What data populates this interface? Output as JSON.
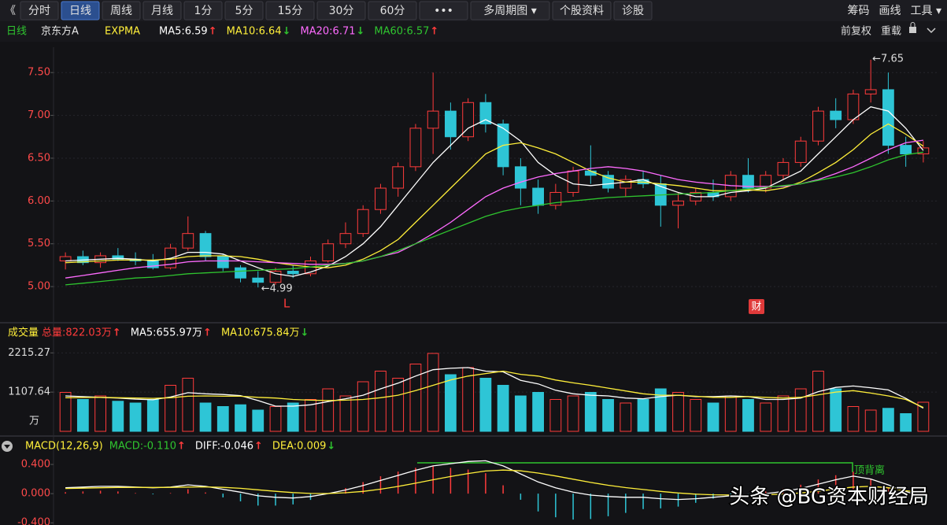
{
  "toolbar": {
    "left": [
      "《",
      "分时",
      "日线",
      "周线",
      "月线",
      "1分",
      "5分",
      "15分",
      "30分",
      "60分",
      "•••",
      "多周期图 ▾",
      "个股资料",
      "诊股"
    ],
    "active": "日线",
    "right": [
      "筹码",
      "画线",
      "工具 ▾"
    ]
  },
  "header": {
    "period": "日线",
    "name": "京东方A",
    "indicator": "EXPMA",
    "right": [
      "前复权",
      "重载"
    ]
  },
  "watermark": "头条 @BG资本财经局",
  "chart_data": [
    {
      "type": "candlestick",
      "open": [
        5.3,
        5.35,
        5.28,
        5.36,
        5.32,
        5.3,
        5.22,
        5.45,
        5.62,
        5.35,
        5.22,
        5.1,
        5.05,
        5.18,
        5.15,
        5.3,
        5.5,
        5.62,
        5.9,
        6.15,
        6.4,
        6.85,
        7.05,
        6.75,
        7.15,
        6.9,
        6.4,
        6.15,
        5.95,
        6.1,
        6.35,
        6.3,
        6.15,
        6.25,
        6.2,
        5.95,
        6.0,
        6.1,
        6.05,
        6.3,
        6.15,
        6.3,
        6.45,
        6.7,
        7.05,
        6.95,
        7.25,
        7.3,
        6.65,
        6.55
      ],
      "high": [
        5.4,
        5.42,
        5.4,
        5.45,
        5.4,
        5.38,
        5.5,
        5.82,
        5.65,
        5.38,
        5.25,
        5.18,
        5.22,
        5.25,
        5.35,
        5.55,
        5.75,
        5.95,
        6.2,
        6.45,
        6.9,
        7.5,
        7.15,
        7.2,
        7.25,
        6.95,
        6.5,
        6.25,
        6.2,
        6.4,
        6.65,
        6.35,
        6.3,
        6.35,
        6.3,
        6.1,
        6.15,
        6.25,
        6.35,
        6.5,
        6.35,
        6.5,
        6.75,
        7.1,
        7.2,
        7.3,
        7.65,
        7.5,
        6.75,
        6.7
      ],
      "low": [
        5.2,
        5.25,
        5.22,
        5.3,
        5.25,
        5.2,
        5.2,
        5.42,
        5.3,
        5.18,
        5.05,
        4.99,
        5.02,
        5.1,
        5.12,
        5.28,
        5.45,
        5.58,
        5.85,
        6.05,
        6.35,
        6.55,
        6.6,
        6.7,
        6.8,
        6.3,
        5.95,
        5.85,
        5.9,
        6.05,
        6.2,
        6.1,
        6.05,
        6.15,
        5.7,
        5.68,
        5.95,
        6.0,
        6.0,
        6.1,
        6.1,
        6.25,
        6.4,
        6.65,
        6.85,
        6.9,
        7.15,
        6.55,
        6.4,
        6.45
      ],
      "close": [
        5.35,
        5.28,
        5.36,
        5.32,
        5.3,
        5.22,
        5.45,
        5.62,
        5.35,
        5.22,
        5.1,
        5.05,
        5.18,
        5.15,
        5.3,
        5.5,
        5.62,
        5.9,
        6.15,
        6.4,
        6.85,
        7.05,
        6.75,
        7.15,
        6.9,
        6.4,
        6.15,
        5.95,
        6.1,
        6.35,
        6.3,
        6.15,
        6.25,
        6.2,
        5.95,
        6.0,
        6.1,
        6.05,
        6.3,
        6.15,
        6.3,
        6.45,
        6.7,
        7.05,
        6.95,
        7.25,
        7.3,
        6.65,
        6.55,
        6.62
      ],
      "up_color": "#ff3b3b",
      "down_color": "#2ec5d6",
      "ylim": [
        4.67,
        7.75
      ],
      "yticks": [
        {
          "value": 5.0,
          "label": "5.00"
        },
        {
          "value": 5.5,
          "label": "5.50"
        },
        {
          "value": 6.0,
          "label": "6.00"
        },
        {
          "value": 6.5,
          "label": "6.50"
        },
        {
          "value": 7.0,
          "label": "7.00"
        },
        {
          "value": 7.5,
          "label": "7.50"
        }
      ],
      "grid": true,
      "series": [
        {
          "name": "MA5:6.59",
          "arrow": "↑",
          "color": "#ffffff",
          "values": [
            5.3,
            5.31,
            5.32,
            5.33,
            5.32,
            5.3,
            5.33,
            5.4,
            5.4,
            5.38,
            5.3,
            5.22,
            5.15,
            5.12,
            5.17,
            5.24,
            5.35,
            5.5,
            5.7,
            5.95,
            6.2,
            6.45,
            6.65,
            6.85,
            6.95,
            6.85,
            6.7,
            6.45,
            6.3,
            6.2,
            6.18,
            6.2,
            6.22,
            6.25,
            6.17,
            6.1,
            6.05,
            6.05,
            6.1,
            6.12,
            6.15,
            6.25,
            6.35,
            6.55,
            6.75,
            6.95,
            7.1,
            7.05,
            6.85,
            6.59
          ]
        },
        {
          "name": "MA10:6.64",
          "arrow": "↓",
          "color": "#ffef3a",
          "values": [
            5.28,
            5.29,
            5.3,
            5.31,
            5.31,
            5.31,
            5.32,
            5.35,
            5.36,
            5.36,
            5.35,
            5.32,
            5.28,
            5.25,
            5.23,
            5.22,
            5.25,
            5.32,
            5.42,
            5.55,
            5.75,
            5.95,
            6.15,
            6.35,
            6.55,
            6.65,
            6.68,
            6.62,
            6.55,
            6.45,
            6.35,
            6.27,
            6.22,
            6.22,
            6.2,
            6.18,
            6.15,
            6.12,
            6.12,
            6.13,
            6.12,
            6.15,
            6.22,
            6.33,
            6.45,
            6.6,
            6.78,
            6.9,
            6.78,
            6.64
          ]
        },
        {
          "name": "MA20:6.71",
          "arrow": "↓",
          "color": "#ff6bff",
          "values": [
            5.1,
            5.13,
            5.16,
            5.19,
            5.22,
            5.24,
            5.26,
            5.29,
            5.3,
            5.3,
            5.3,
            5.29,
            5.28,
            5.27,
            5.26,
            5.26,
            5.27,
            5.3,
            5.35,
            5.4,
            5.5,
            5.62,
            5.75,
            5.9,
            6.05,
            6.15,
            6.22,
            6.28,
            6.32,
            6.35,
            6.38,
            6.4,
            6.38,
            6.35,
            6.3,
            6.25,
            6.22,
            6.2,
            6.18,
            6.17,
            6.17,
            6.17,
            6.2,
            6.25,
            6.32,
            6.4,
            6.5,
            6.6,
            6.68,
            6.71
          ]
        },
        {
          "name": "MA60:6.57",
          "arrow": "↑",
          "color": "#2fc42f",
          "values": [
            5.02,
            5.04,
            5.06,
            5.08,
            5.1,
            5.11,
            5.13,
            5.15,
            5.16,
            5.17,
            5.18,
            5.19,
            5.2,
            5.21,
            5.23,
            5.25,
            5.27,
            5.3,
            5.35,
            5.42,
            5.5,
            5.58,
            5.66,
            5.74,
            5.82,
            5.88,
            5.92,
            5.95,
            5.98,
            6.0,
            6.02,
            6.04,
            6.05,
            6.06,
            6.07,
            6.08,
            6.09,
            6.1,
            6.12,
            6.14,
            6.16,
            6.18,
            6.2,
            6.24,
            6.28,
            6.33,
            6.4,
            6.48,
            6.54,
            6.57
          ]
        }
      ],
      "annotations": [
        "←7.65",
        "←4.99"
      ],
      "markers": [
        "L",
        "财"
      ]
    },
    {
      "type": "bar",
      "title": "成交量",
      "unit": "万",
      "values": [
        1100,
        900,
        1000,
        850,
        800,
        900,
        1300,
        1500,
        800,
        700,
        750,
        600,
        700,
        800,
        900,
        1200,
        1000,
        1400,
        1700,
        1500,
        1900,
        2200,
        1600,
        1800,
        1500,
        1300,
        1000,
        1100,
        900,
        1000,
        1100,
        900,
        800,
        900,
        1200,
        1100,
        900,
        800,
        1000,
        900,
        800,
        1000,
        1200,
        1700,
        1200,
        700,
        600,
        650,
        500,
        822.03
      ],
      "ylim": [
        0,
        2400
      ],
      "yticks": [
        1107.64,
        2215.27
      ],
      "grid": true,
      "total": {
        "label": "总量:822.03万",
        "arrow": "↑",
        "color": "#ff3b3b"
      },
      "series": [
        {
          "name": "MA5:655.97万",
          "arrow": "↑",
          "color": "#ffffff",
          "values": [
            1000,
            980,
            960,
            940,
            910,
            890,
            970,
            1090,
            1060,
            1040,
            1010,
            870,
            710,
            710,
            750,
            840,
            920,
            1020,
            1200,
            1360,
            1560,
            1740,
            1780,
            1800,
            1700,
            1680,
            1440,
            1340,
            1160,
            1060,
            1020,
            1000,
            940,
            920,
            980,
            1020,
            980,
            980,
            1000,
            980,
            900,
            900,
            940,
            1120,
            1240,
            1280,
            1230,
            1170,
            930,
            655.97
          ]
        },
        {
          "name": "MA10:675.84万",
          "arrow": "↓",
          "color": "#ffef3a",
          "values": [
            950,
            955,
            960,
            950,
            940,
            930,
            950,
            990,
            1000,
            990,
            990,
            960,
            940,
            900,
            880,
            870,
            880,
            900,
            950,
            1020,
            1150,
            1300,
            1450,
            1560,
            1630,
            1700,
            1610,
            1560,
            1450,
            1370,
            1300,
            1220,
            1140,
            1060,
            1020,
            1020,
            990,
            960,
            960,
            980,
            960,
            940,
            960,
            1030,
            1110,
            1150,
            1080,
            1000,
            900,
            675.84
          ]
        }
      ]
    },
    {
      "type": "macd",
      "title": "MACD(12,26,9)",
      "values": [
        0.02,
        0.03,
        0.04,
        0.03,
        0.008,
        -0.01,
        0.008,
        0.06,
        0.016,
        -0.052,
        -0.106,
        -0.164,
        -0.164,
        -0.148,
        -0.086,
        -0.004,
        0.076,
        0.158,
        0.238,
        0.302,
        0.354,
        0.38,
        0.352,
        0.33,
        0.28,
        0.114,
        -0.084,
        -0.244,
        -0.324,
        -0.356,
        -0.348,
        -0.31,
        -0.264,
        -0.212,
        -0.202,
        -0.178,
        -0.126,
        -0.068,
        -0.022,
        -0.002,
        0.03,
        0.072,
        0.122,
        0.194,
        0.252,
        0.3,
        0.2,
        0.08,
        -0.02,
        -0.11
      ],
      "value_name": {
        "label": "MACD:-0.110",
        "arrow": "↑",
        "color": "#2fc42f"
      },
      "ylim": [
        -0.43,
        0.53
      ],
      "yticks": [
        {
          "value": -0.4,
          "label": "-0.400"
        },
        {
          "value": 0,
          "label": "0.000"
        },
        {
          "value": 0.4,
          "label": "0.400"
        }
      ],
      "series": [
        {
          "name": "DIFF:-0.046",
          "arrow": "↑",
          "color": "#ffffff",
          "values": [
            0.08,
            0.09,
            0.1,
            0.1,
            0.09,
            0.08,
            0.09,
            0.12,
            0.1,
            0.06,
            0.02,
            -0.03,
            -0.05,
            -0.06,
            -0.04,
            0.0,
            0.05,
            0.11,
            0.18,
            0.25,
            0.32,
            0.38,
            0.41,
            0.44,
            0.45,
            0.38,
            0.27,
            0.16,
            0.08,
            0.02,
            -0.02,
            -0.04,
            -0.05,
            -0.05,
            -0.07,
            -0.08,
            -0.07,
            -0.05,
            -0.03,
            -0.02,
            0.0,
            0.03,
            0.07,
            0.13,
            0.19,
            0.24,
            0.2,
            0.12,
            0.03,
            -0.046
          ]
        },
        {
          "name": "DEA:0.009",
          "arrow": "↓",
          "color": "#ffef3a",
          "values": [
            0.07,
            0.075,
            0.08,
            0.085,
            0.086,
            0.085,
            0.086,
            0.09,
            0.092,
            0.086,
            0.073,
            0.052,
            0.032,
            0.014,
            0.003,
            0.002,
            0.012,
            0.031,
            0.061,
            0.099,
            0.143,
            0.19,
            0.234,
            0.275,
            0.31,
            0.323,
            0.312,
            0.282,
            0.242,
            0.198,
            0.154,
            0.115,
            0.082,
            0.056,
            0.031,
            0.009,
            -0.007,
            -0.016,
            -0.019,
            -0.019,
            -0.015,
            -0.006,
            0.009,
            0.033,
            0.064,
            0.09,
            0.1,
            0.08,
            0.04,
            0.009
          ]
        }
      ],
      "annotations": [
        "顶背离"
      ]
    }
  ]
}
